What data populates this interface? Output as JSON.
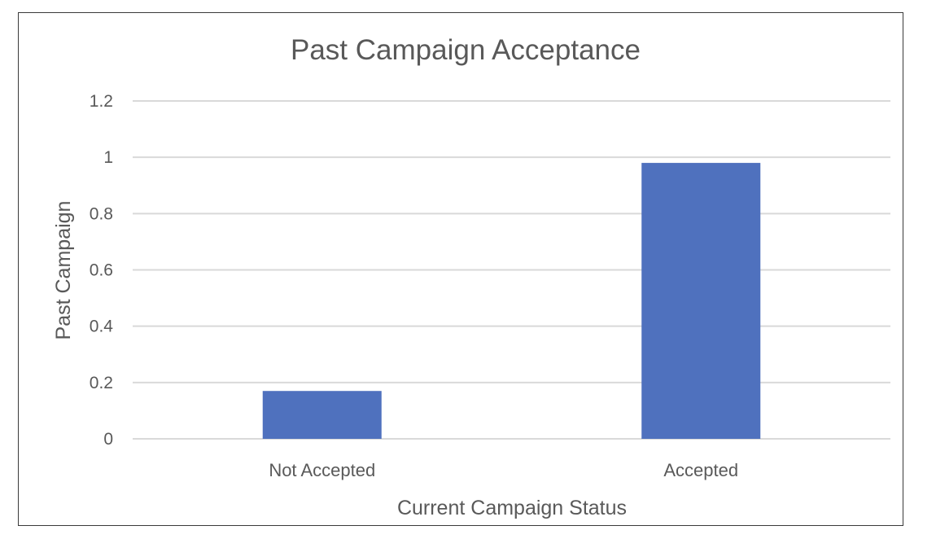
{
  "chart_data": {
    "type": "bar",
    "title": "Past Campaign Acceptance",
    "xlabel": "Current Campaign Status",
    "ylabel": "Past Campaign",
    "categories": [
      "Not Accepted",
      "Accepted"
    ],
    "values": [
      0.17,
      0.98
    ],
    "ylim": [
      0,
      1.2
    ],
    "yticks": [
      "0",
      "0.2",
      "0.4",
      "0.6",
      "0.8",
      "1",
      "1.2"
    ],
    "ytick_values": [
      0,
      0.2,
      0.4,
      0.6,
      0.8,
      1,
      1.2
    ],
    "grid": true,
    "legend": "none",
    "bar_color": "#4f71be",
    "gridline_color": "#d9d9d9",
    "text_color": "#595959"
  }
}
